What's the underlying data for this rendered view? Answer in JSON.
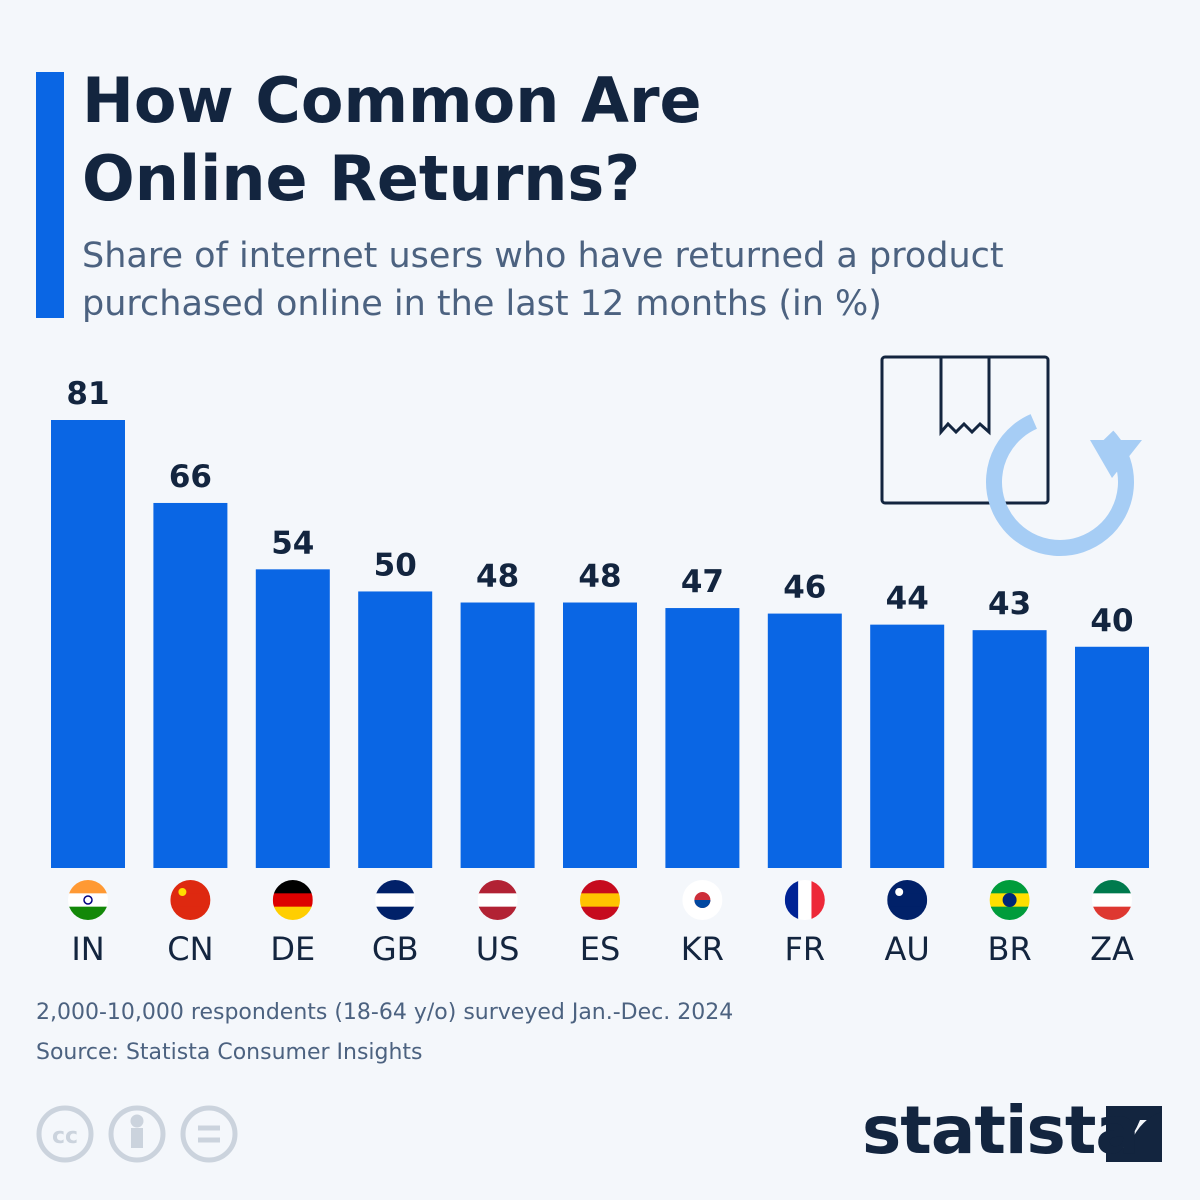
{
  "chart_data": {
    "type": "bar",
    "title": "How Common Are Online Returns?",
    "subtitle": "Share of internet users who have returned a product purchased online in the last 12 months (in %)",
    "categories": [
      "IN",
      "CN",
      "DE",
      "GB",
      "US",
      "ES",
      "KR",
      "FR",
      "AU",
      "BR",
      "ZA"
    ],
    "values": [
      81,
      66,
      54,
      50,
      48,
      48,
      47,
      46,
      44,
      43,
      40
    ],
    "color": "#0a66e4",
    "footnote": "2,000-10,000 respondents (18-64 y/o) surveyed Jan.-Dec. 2024",
    "source": "Source: Statista Consumer Insights",
    "brand": "statista"
  }
}
